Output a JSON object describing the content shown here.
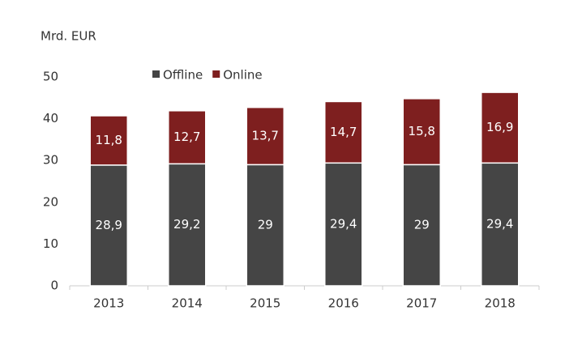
{
  "chart_data": {
    "type": "bar",
    "stacked": true,
    "y_axis_label": "Mrd. EUR",
    "categories": [
      "2013",
      "2014",
      "2015",
      "2016",
      "2017",
      "2018"
    ],
    "series": [
      {
        "name": "Offline",
        "color": "#454545",
        "values": [
          28.9,
          29.2,
          29,
          29.4,
          29,
          29.4
        ],
        "value_labels": [
          "28,9",
          "29,2",
          "29",
          "29,4",
          "29",
          "29,4"
        ]
      },
      {
        "name": "Online",
        "color": "#7e1f1f",
        "values": [
          11.8,
          12.7,
          13.7,
          14.7,
          15.8,
          16.9
        ],
        "value_labels": [
          "11,8",
          "12,7",
          "13,7",
          "14,7",
          "15,8",
          "16,9"
        ]
      }
    ],
    "ylim": [
      0,
      50
    ],
    "yticks": [
      0,
      10,
      20,
      30,
      40,
      50
    ],
    "grid": false
  }
}
